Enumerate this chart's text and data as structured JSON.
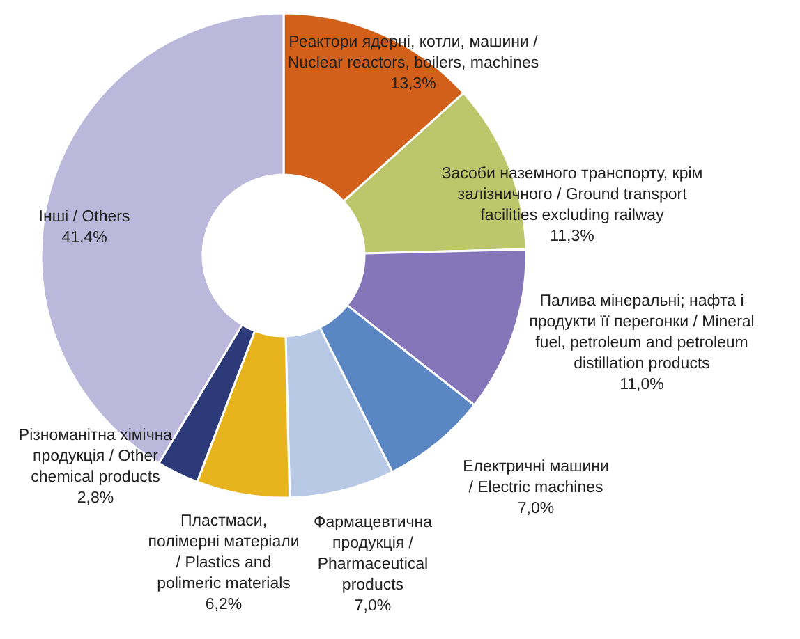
{
  "chart_data": {
    "type": "donut",
    "categories": [
      "Реактори ядерні, котли, машини /\nNuclear reactors, boilers, machines",
      "Засоби наземного транспорту, крім\nзалізничного / Ground transport\nfacilities excluding railway",
      "Палива мінеральні; нафта і\nпродукти її перегонки / Mineral\nfuel, petroleum and petroleum\ndistillation products",
      "Електричні машини\n/ Electric machines",
      "Фармацевтична\nпродукція /\nPharmaceutical\nproducts",
      "Пластмаси,\nполімерні матеріали\n/ Plastics and\npolimeric materials",
      "Різноманітна хімічна\nпродукція / Other\nchemical products",
      "Інші / Others"
    ],
    "values": [
      13.3,
      11.3,
      11.0,
      7.0,
      7.0,
      6.2,
      2.8,
      41.4
    ],
    "value_labels": [
      "13,3%",
      "11,3%",
      "11,0%",
      "7,0%",
      "7,0%",
      "6,2%",
      "2,8%",
      "41,4%"
    ],
    "colors": [
      "#d2601a",
      "#bcc66a",
      "#8476b8",
      "#5b86c4",
      "#b8c9e6",
      "#e8b41e",
      "#2d3a7a",
      "#bbb8dc"
    ]
  }
}
